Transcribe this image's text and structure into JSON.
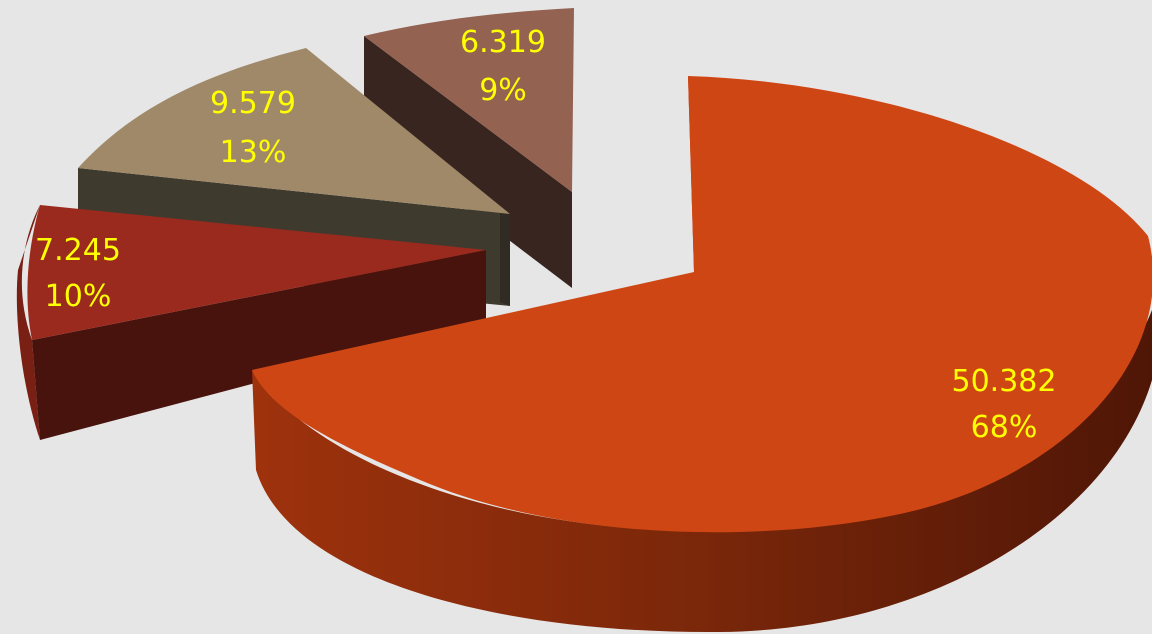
{
  "chart_data": {
    "type": "pie",
    "style": "3d-exploded",
    "slices": [
      {
        "value": "50.382",
        "percent": "68%",
        "color": "#cf4615",
        "side_color": "#8f2e0c"
      },
      {
        "value": "7.245",
        "percent": "10%",
        "color": "#9a2a1d",
        "side_color": "#48130c"
      },
      {
        "value": "9.579",
        "percent": "13%",
        "color": "#a08969",
        "side_color": "#3f3a2e"
      },
      {
        "value": "6.319",
        "percent": "9%",
        "color": "#946251",
        "side_color": "#382520"
      }
    ],
    "label_color": "#ffff00",
    "legend": "none"
  }
}
